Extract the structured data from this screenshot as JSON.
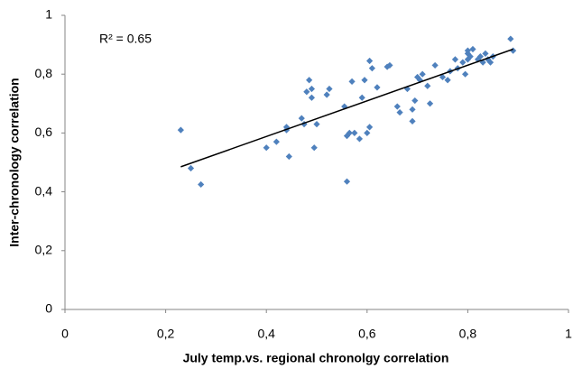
{
  "chart_data": {
    "type": "scatter",
    "xlabel": "July temp.vs. regional chronolgy correlation",
    "ylabel": "Inter-chronology correlation",
    "annotation": "R² = 0.65",
    "xlim": [
      0,
      1
    ],
    "ylim": [
      0,
      1
    ],
    "xticks": [
      0,
      {
        "value": 0.2,
        "label": "0,2"
      },
      {
        "value": 0.4,
        "label": "0,4"
      },
      {
        "value": 0.6,
        "label": "0,6"
      },
      {
        "value": 0.8,
        "label": "0,8"
      },
      1
    ],
    "yticks": [
      0,
      {
        "value": 0.2,
        "label": "0,2"
      },
      {
        "value": 0.4,
        "label": "0,4"
      },
      {
        "value": 0.6,
        "label": "0,6"
      },
      {
        "value": 0.8,
        "label": "0,8"
      },
      1
    ],
    "grid": false,
    "series": [
      {
        "color": "#4f81bd",
        "x": [
          0.23,
          0.25,
          0.27,
          0.4,
          0.42,
          0.44,
          0.44,
          0.445,
          0.47,
          0.475,
          0.48,
          0.485,
          0.49,
          0.49,
          0.495,
          0.5,
          0.52,
          0.525,
          0.555,
          0.56,
          0.56,
          0.565,
          0.57,
          0.575,
          0.585,
          0.59,
          0.595,
          0.6,
          0.605,
          0.605,
          0.61,
          0.62,
          0.64,
          0.645,
          0.66,
          0.665,
          0.68,
          0.69,
          0.69,
          0.695,
          0.7,
          0.705,
          0.71,
          0.72,
          0.725,
          0.735,
          0.75,
          0.76,
          0.765,
          0.775,
          0.78,
          0.79,
          0.795,
          0.8,
          0.8,
          0.8,
          0.805,
          0.81,
          0.82,
          0.825,
          0.83,
          0.835,
          0.84,
          0.845,
          0.85,
          0.885,
          0.89
        ],
        "values": [
          0.61,
          0.48,
          0.425,
          0.55,
          0.57,
          0.61,
          0.62,
          0.52,
          0.65,
          0.63,
          0.74,
          0.78,
          0.75,
          0.72,
          0.55,
          0.63,
          0.73,
          0.75,
          0.69,
          0.435,
          0.59,
          0.6,
          0.775,
          0.6,
          0.58,
          0.72,
          0.78,
          0.6,
          0.62,
          0.845,
          0.82,
          0.755,
          0.825,
          0.83,
          0.69,
          0.67,
          0.75,
          0.68,
          0.64,
          0.71,
          0.79,
          0.78,
          0.8,
          0.76,
          0.7,
          0.83,
          0.79,
          0.78,
          0.81,
          0.85,
          0.82,
          0.84,
          0.8,
          0.85,
          0.87,
          0.88,
          0.86,
          0.885,
          0.85,
          0.86,
          0.84,
          0.87,
          0.85,
          0.84,
          0.86,
          0.92,
          0.88
        ]
      }
    ],
    "trendline": {
      "color": "#000000",
      "x": [
        0.23,
        0.89
      ],
      "values": [
        0.485,
        0.885
      ]
    }
  }
}
